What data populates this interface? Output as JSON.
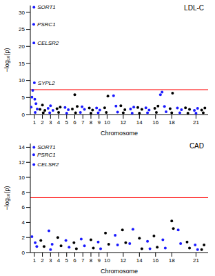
{
  "chart_data": [
    {
      "type": "scatter",
      "title": "LDL-C",
      "x_label": "Chromosome",
      "y_label": "−log₁₀(p)",
      "xlim": [
        1,
        23
      ],
      "xticks": [
        {
          "value": 1.5,
          "label": "1"
        },
        {
          "value": 2.5,
          "label": "2"
        },
        {
          "value": 3.5,
          "label": "3"
        },
        {
          "value": 4.5,
          "label": "4"
        },
        {
          "value": 5.5,
          "label": "5"
        },
        {
          "value": 6.5,
          "label": "6"
        },
        {
          "value": 7.5,
          "label": "7"
        },
        {
          "value": 8.5,
          "label": "8"
        },
        {
          "value": 9.5,
          "label": "9"
        },
        {
          "value": 10.5,
          "label": "10"
        },
        {
          "value": 12.5,
          "label": "12"
        },
        {
          "value": 14.5,
          "label": "14"
        },
        {
          "value": 16.5,
          "label": "16"
        },
        {
          "value": 18.5,
          "label": "18"
        },
        {
          "value": 21.5,
          "label": "21"
        }
      ],
      "ylim": [
        0,
        32
      ],
      "yticks": [
        0,
        5,
        10,
        15,
        20,
        25,
        30
      ],
      "threshold": 7.3,
      "threshold_color": "#ff0000",
      "series": [
        {
          "color": "#1a1aff",
          "marker": "circle",
          "x": [
            1.1,
            1.2,
            1.3,
            1.42,
            1.44,
            1.45,
            1.5,
            1.55,
            1.7,
            1.85,
            1.6,
            3.2,
            3.5,
            3.8,
            3.4,
            5.3,
            5.7,
            5.5,
            7.4,
            7.7,
            7.2,
            9.2,
            9.6,
            9.4,
            11.3,
            11.6,
            11.8,
            13.4,
            13.8,
            13.6,
            15.3,
            15.7,
            15.5,
            17.1,
            17.3,
            17.6,
            17.8,
            19.2,
            19.7,
            19.5,
            21.3,
            21.7,
            21.5
          ],
          "values": [
            2.2,
            5.1,
            7.1,
            26.5,
            21.0,
            31.5,
            9.3,
            4.5,
            3.2,
            1.6,
            0.6,
            1.8,
            2.6,
            1.2,
            0.5,
            2.1,
            1.4,
            0.4,
            2.3,
            1.5,
            0.6,
            1.9,
            1.3,
            0.5,
            5.5,
            2.5,
            0.7,
            1.6,
            2.2,
            0.4,
            2.0,
            1.3,
            0.5,
            5.8,
            6.6,
            2.4,
            0.8,
            1.9,
            1.4,
            0.5,
            1.2,
            1.8,
            0.4
          ]
        },
        {
          "color": "#000000",
          "marker": "circle",
          "x": [
            2.2,
            2.5,
            2.8,
            2.6,
            4.3,
            4.7,
            4.5,
            6.2,
            6.5,
            6.8,
            6.6,
            8.3,
            8.7,
            8.5,
            10.2,
            10.6,
            10.4,
            12.2,
            12.7,
            12.5,
            14.3,
            14.8,
            14.5,
            16.4,
            16.8,
            16.6,
            18.3,
            18.6,
            18.5,
            20.2,
            20.7,
            20.5,
            22.2,
            22.6,
            22.4
          ],
          "values": [
            1.5,
            2.8,
            1.2,
            0.5,
            1.7,
            2.2,
            0.6,
            1.6,
            5.8,
            2.4,
            0.5,
            1.9,
            1.3,
            0.4,
            2.0,
            5.4,
            0.6,
            2.6,
            1.4,
            0.5,
            2.1,
            1.5,
            0.4,
            1.8,
            2.5,
            0.6,
            1.7,
            6.3,
            0.5,
            2.0,
            1.5,
            0.4,
            1.3,
            1.9,
            0.5
          ]
        }
      ],
      "annotations": [
        {
          "x": 1.45,
          "y": 31.5,
          "text": "SORT1"
        },
        {
          "x": 1.42,
          "y": 26.5,
          "text": "PSRC1"
        },
        {
          "x": 1.44,
          "y": 21.0,
          "text": "CELSR2"
        },
        {
          "x": 1.5,
          "y": 9.3,
          "text": "SYPL2"
        }
      ]
    },
    {
      "type": "scatter",
      "title": "CAD",
      "x_label": "Chromosome",
      "y_label": "−log₁₀(p)",
      "xlim": [
        1,
        23
      ],
      "xticks": [
        {
          "value": 1.5,
          "label": "1"
        },
        {
          "value": 2.5,
          "label": "2"
        },
        {
          "value": 3.5,
          "label": "3"
        },
        {
          "value": 4.5,
          "label": "4"
        },
        {
          "value": 5.5,
          "label": "5"
        },
        {
          "value": 6.5,
          "label": "6"
        },
        {
          "value": 7.5,
          "label": "7"
        },
        {
          "value": 8.5,
          "label": "8"
        },
        {
          "value": 9.5,
          "label": "9"
        },
        {
          "value": 10.5,
          "label": "10"
        },
        {
          "value": 12.5,
          "label": "12"
        },
        {
          "value": 14.5,
          "label": "14"
        },
        {
          "value": 16.5,
          "label": "16"
        },
        {
          "value": 18.5,
          "label": "18"
        },
        {
          "value": 21.5,
          "label": "21"
        }
      ],
      "ylim": [
        0,
        14.5
      ],
      "yticks": [
        0,
        2,
        4,
        6,
        8,
        10,
        12,
        14
      ],
      "threshold": 7.3,
      "threshold_color": "#ff0000",
      "series": [
        {
          "color": "#1a1aff",
          "marker": "circle",
          "x": [
            1.45,
            1.42,
            1.44,
            1.2,
            1.6,
            1.8,
            3.3,
            3.7,
            3.5,
            5.4,
            5.8,
            7.3,
            7.7,
            9.4,
            9.7,
            11.5,
            11.8,
            13.3,
            13.7,
            15.5,
            15.8,
            17.4,
            17.7,
            19.3,
            19.6,
            21.4,
            21.7
          ],
          "values": [
            14.0,
            13.0,
            11.7,
            2.1,
            1.3,
            0.8,
            2.9,
            1.1,
            0.4,
            1.6,
            0.7,
            1.8,
            0.9,
            1.4,
            0.5,
            2.3,
            1.0,
            1.2,
            3.1,
            1.5,
            0.5,
            1.7,
            0.6,
            3.0,
            1.2,
            1.0,
            0.4
          ]
        },
        {
          "color": "#000000",
          "marker": "circle",
          "x": [
            2.3,
            2.7,
            4.4,
            4.8,
            6.4,
            6.7,
            8.5,
            8.8,
            10.3,
            10.7,
            12.4,
            12.8,
            14.5,
            14.8,
            16.3,
            16.7,
            18.5,
            18.7,
            20.4,
            20.7,
            22.5,
            22.2
          ],
          "values": [
            1.6,
            0.8,
            2.0,
            0.9,
            1.3,
            0.5,
            1.7,
            0.6,
            2.6,
            1.1,
            3.0,
            1.3,
            1.9,
            0.5,
            2.2,
            0.7,
            4.2,
            3.2,
            1.4,
            0.6,
            1.0,
            0.4
          ]
        }
      ],
      "annotations": [
        {
          "x": 1.45,
          "y": 14.0,
          "text": "SORT1"
        },
        {
          "x": 1.42,
          "y": 13.0,
          "text": "PSRC1"
        },
        {
          "x": 1.44,
          "y": 11.7,
          "text": "CELSR2"
        }
      ]
    }
  ]
}
